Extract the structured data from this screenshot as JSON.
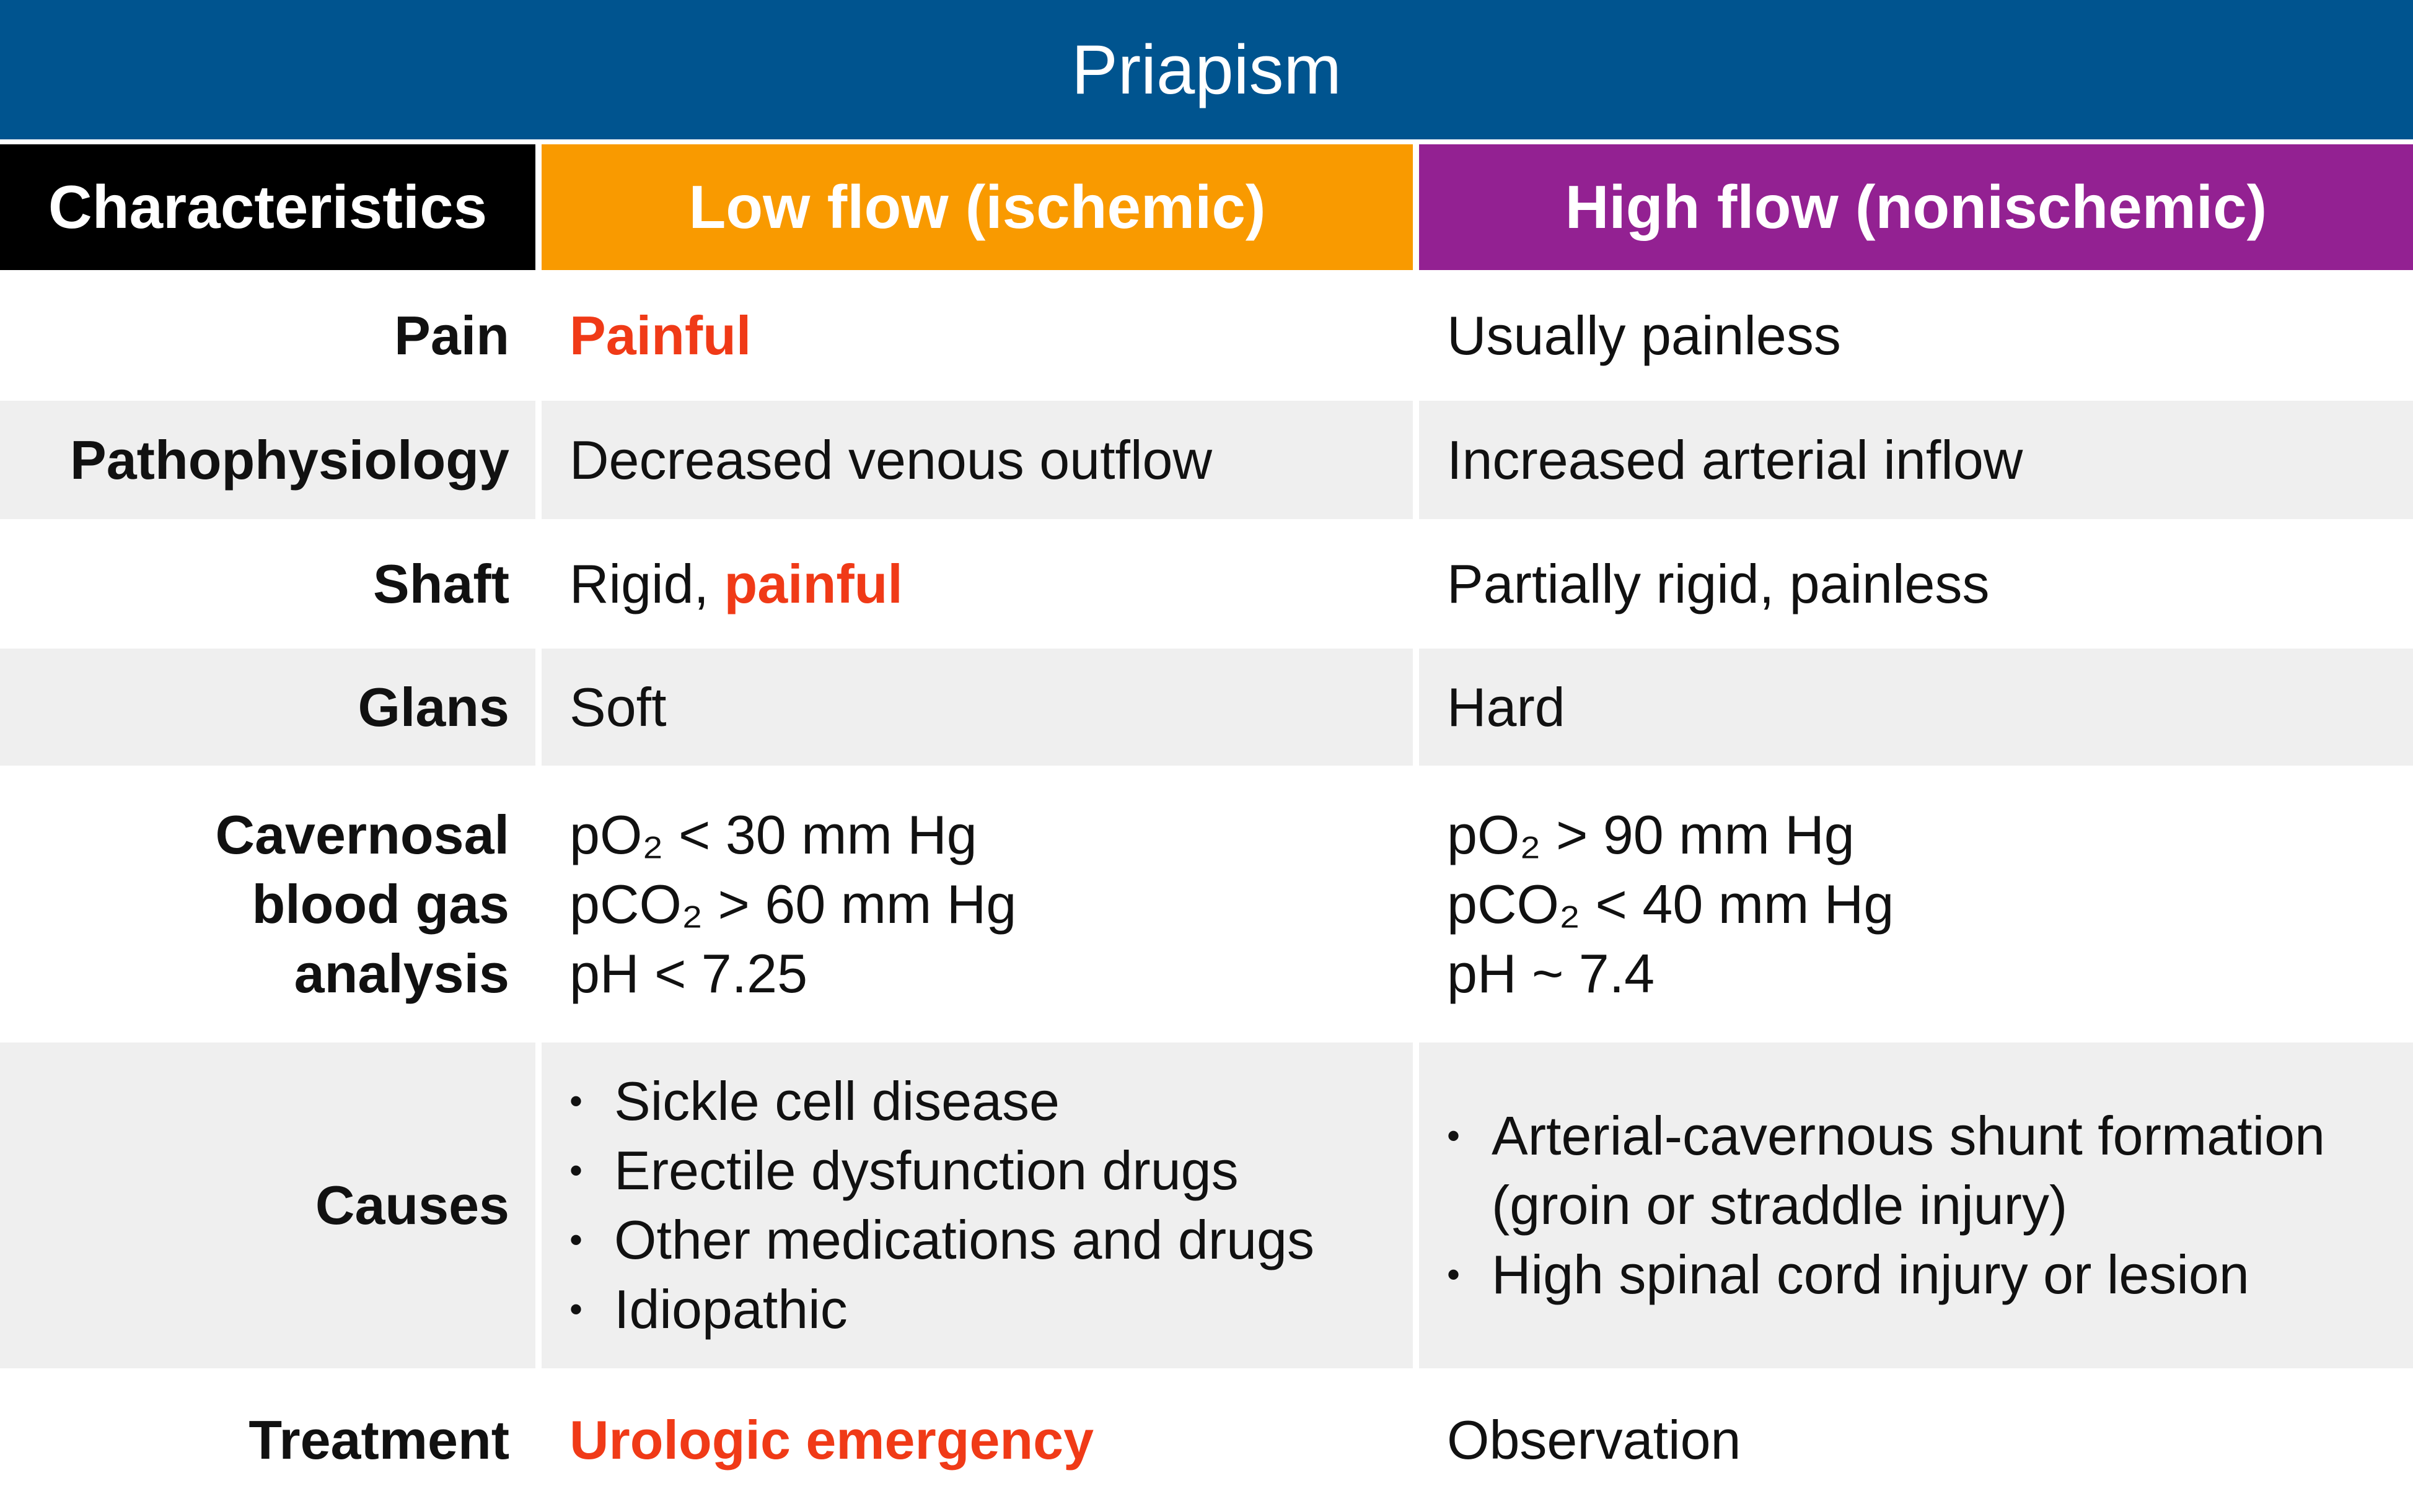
{
  "header": {
    "title": "Priapism"
  },
  "highlight_color": "#f03a17",
  "table": {
    "columns": [
      "Characteristics",
      "Low flow (ischemic)",
      "High flow (nonischemic)"
    ],
    "rows": [
      {
        "label": [
          "Pain"
        ],
        "low": {
          "lines": [
            [
              {
                "text": "Painful",
                "highlight": true
              }
            ]
          ]
        },
        "high": {
          "lines": [
            "Usually painless"
          ]
        }
      },
      {
        "label": [
          "Pathophysiology"
        ],
        "low": {
          "lines": [
            "Decreased venous outflow"
          ]
        },
        "high": {
          "lines": [
            "Increased arterial inflow"
          ]
        }
      },
      {
        "label": [
          "Shaft"
        ],
        "low": {
          "lines": [
            [
              {
                "text": "Rigid, ",
                "highlight": false
              },
              {
                "text": "painful",
                "highlight": true
              }
            ]
          ]
        },
        "high": {
          "lines": [
            "Partially rigid, painless"
          ]
        }
      },
      {
        "label": [
          "Glans"
        ],
        "low": {
          "lines": [
            "Soft"
          ]
        },
        "high": {
          "lines": [
            "Hard"
          ]
        }
      },
      {
        "label": [
          "Cavernosal",
          "blood gas",
          "analysis"
        ],
        "low": {
          "lines": [
            "pO₂ < 30 mm Hg",
            "pCO₂ > 60 mm Hg",
            "pH < 7.25"
          ]
        },
        "high": {
          "lines": [
            "pO₂ > 90 mm Hg",
            "pCO₂ < 40 mm Hg",
            "pH ~ 7.4"
          ]
        }
      },
      {
        "label": [
          "Causes"
        ],
        "low": {
          "bullets": [
            "Sickle cell disease",
            "Erectile dysfunction drugs",
            "Other medications and drugs",
            "Idiopathic"
          ]
        },
        "high": {
          "bullets": [
            "Arterial-cavernous shunt formation (groin or straddle injury)",
            "High spinal cord injury or lesion"
          ]
        }
      },
      {
        "label": [
          "Treatment"
        ],
        "low": {
          "lines": [
            [
              {
                "text": "Urologic emergency",
                "highlight": true
              }
            ]
          ]
        },
        "high": {
          "lines": [
            "Observation"
          ]
        }
      }
    ]
  }
}
